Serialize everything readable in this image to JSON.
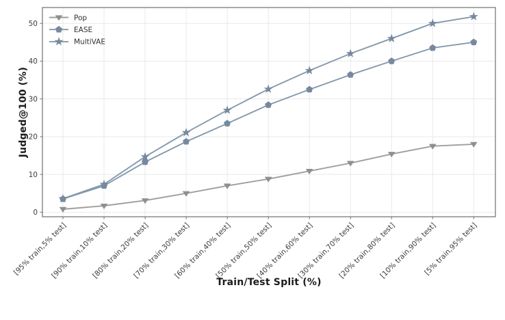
{
  "figure": {
    "background": "#ffffff",
    "grid_color": "#e9e9e9",
    "spine_color": "#6f6f6f",
    "tick_color": "#6f6f6f",
    "tick_label_color": "#3b3b3b",
    "axis_label_color": "#1c1c1c"
  },
  "chart_data": {
    "type": "line",
    "title": "",
    "xlabel": "Train/Test Split (%)",
    "ylabel": "Judged@100 (%)",
    "grid": true,
    "legend_position": "upper left",
    "legend_frame": false,
    "categories": [
      "[95% train,5% test]",
      "[90% train,10% test]",
      "[80% train,20% test]",
      "[70% train,30% test]",
      "[60% train,40% test]",
      "[50% train,50% test]",
      "[40% train,60% test]",
      "[30% train,70% test]",
      "[20% train,80% test]",
      "[10% train,90% test]",
      "[5% train,95% test]"
    ],
    "yticks": [
      0,
      10,
      20,
      30,
      40,
      50
    ],
    "ylim": [
      -1.2,
      54.2
    ],
    "series": [
      {
        "name": "Pop",
        "marker": "triangle-down",
        "color": "#9e9e9e",
        "marker_color": "#8f8f8f",
        "values": [
          0.8,
          1.7,
          3.1,
          5.0,
          7.0,
          8.8,
          10.9,
          13.0,
          15.4,
          17.5,
          18.0
        ]
      },
      {
        "name": "EASE",
        "marker": "pentagon",
        "color": "#8499ad",
        "marker_color": "#76899e",
        "values": [
          3.5,
          7.0,
          13.3,
          18.7,
          23.5,
          28.4,
          32.5,
          36.4,
          40.0,
          43.5,
          45.0
        ]
      },
      {
        "name": "MultiVAE",
        "marker": "star",
        "color": "#8499ad",
        "marker_color": "#76899e",
        "values": [
          3.6,
          7.4,
          14.7,
          21.1,
          27.0,
          32.6,
          37.5,
          42.0,
          46.0,
          50.0,
          51.8
        ]
      }
    ]
  }
}
